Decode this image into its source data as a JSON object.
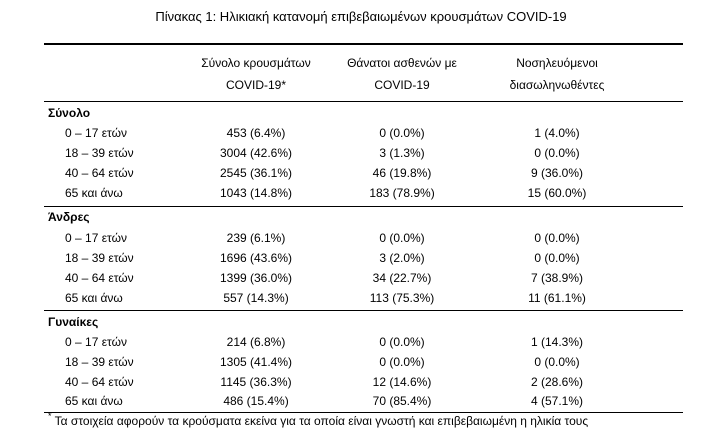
{
  "title": "Πίνακας 1: Ηλικιακή κατανομή επιβεβαιωμένων κρουσμάτων COVID-19",
  "columns": {
    "col1_line1": "Σύνολο κρουσμάτων",
    "col1_line2": "COVID-19*",
    "col2_line1": "Θάνατοι ασθενών με",
    "col2_line2": "COVID-19",
    "col3_line1": "Νοσηλευόμενοι",
    "col3_line2": "διασωληνωθέντες"
  },
  "sections": [
    {
      "name": "Σύνολο",
      "rows": [
        {
          "age": "0 – 17 ετών",
          "cases": "453 (6.4%)",
          "deaths": "0 (0.0%)",
          "intubated": "1 (4.0%)"
        },
        {
          "age": "18 – 39 ετών",
          "cases": "3004 (42.6%)",
          "deaths": "3 (1.3%)",
          "intubated": "0 (0.0%)"
        },
        {
          "age": "40 – 64 ετών",
          "cases": "2545 (36.1%)",
          "deaths": "46 (19.8%)",
          "intubated": "9 (36.0%)"
        },
        {
          "age": "65 και άνω",
          "cases": "1043 (14.8%)",
          "deaths": "183 (78.9%)",
          "intubated": "15 (60.0%)"
        }
      ]
    },
    {
      "name": "Άνδρες",
      "rows": [
        {
          "age": "0 – 17 ετών",
          "cases": "239 (6.1%)",
          "deaths": "0 (0.0%)",
          "intubated": "0 (0.0%)"
        },
        {
          "age": "18 – 39 ετών",
          "cases": "1696 (43.6%)",
          "deaths": "3 (2.0%)",
          "intubated": "0 (0.0%)"
        },
        {
          "age": "40 – 64 ετών",
          "cases": "1399 (36.0%)",
          "deaths": "34 (22.7%)",
          "intubated": "7 (38.9%)"
        },
        {
          "age": "65 και άνω",
          "cases": "557 (14.3%)",
          "deaths": "113 (75.3%)",
          "intubated": "11 (61.1%)"
        }
      ]
    },
    {
      "name": "Γυναίκες",
      "rows": [
        {
          "age": "0 – 17 ετών",
          "cases": "214 (6.8%)",
          "deaths": "0 (0.0%)",
          "intubated": "1 (14.3%)"
        },
        {
          "age": "18 – 39 ετών",
          "cases": "1305 (41.4%)",
          "deaths": "0 (0.0%)",
          "intubated": "0 (0.0%)"
        },
        {
          "age": "40 – 64 ετών",
          "cases": "1145 (36.3%)",
          "deaths": "12 (14.6%)",
          "intubated": "2 (28.6%)"
        },
        {
          "age": "65 και άνω",
          "cases": "486 (15.4%)",
          "deaths": "70 (85.4%)",
          "intubated": "4 (57.1%)"
        }
      ]
    }
  ],
  "footnote": {
    "marker": "*",
    "text": "Τα στοιχεία αφορούν τα κρούσματα εκείνα για τα οποία είναι γνωστή και επιβεβαιωμένη η ηλικία τους"
  }
}
